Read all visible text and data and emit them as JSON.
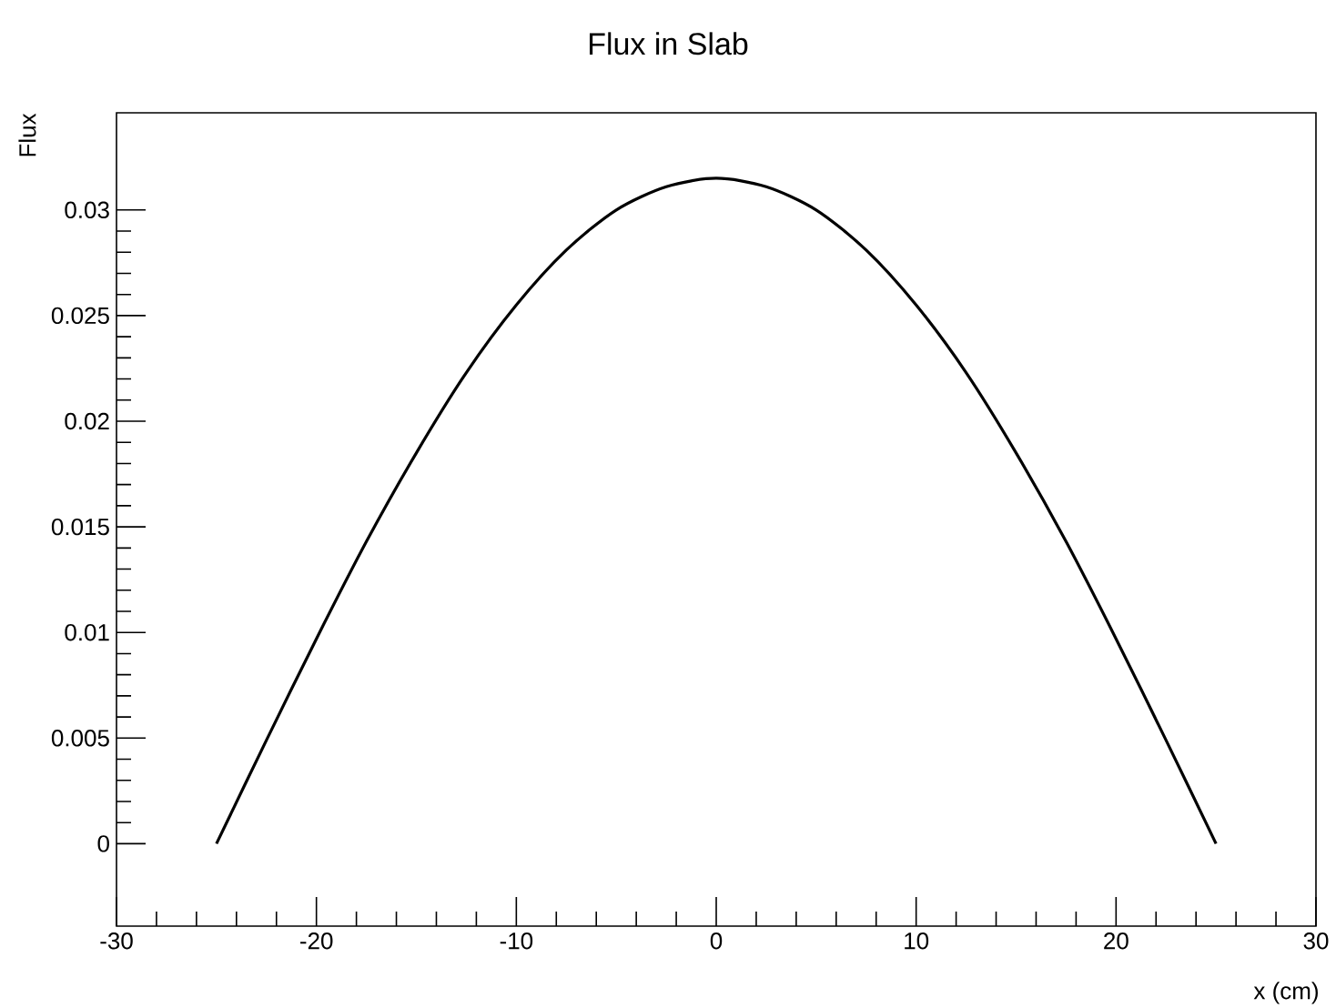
{
  "chart_data": {
    "type": "line",
    "title": "Flux in Slab",
    "xlabel": "x (cm)",
    "ylabel": "Flux",
    "x": [
      -25,
      -22.5,
      -20,
      -17.5,
      -15,
      -12.5,
      -10,
      -7.5,
      -5,
      -2.5,
      0,
      2.5,
      5,
      7.5,
      10,
      12.5,
      15,
      17.5,
      20,
      22.5,
      25
    ],
    "series": [
      {
        "color": "#000000",
        "values": [
          0,
          0.0049,
          0.0097,
          0.0143,
          0.0185,
          0.0223,
          0.0255,
          0.0281,
          0.03,
          0.0311,
          0.0315,
          0.0311,
          0.03,
          0.0281,
          0.0255,
          0.0223,
          0.0185,
          0.0143,
          0.0097,
          0.0049,
          0
        ]
      }
    ],
    "xlim": [
      -30,
      30
    ],
    "ylim": [
      -0.0039,
      0.0346
    ],
    "xticks": [
      -30,
      -20,
      -10,
      0,
      10,
      20,
      30
    ],
    "yticks": [
      0,
      0.005,
      0.01,
      0.015,
      0.02,
      0.025,
      0.03
    ],
    "grid": false,
    "marker": "none",
    "line_style": "solid"
  }
}
